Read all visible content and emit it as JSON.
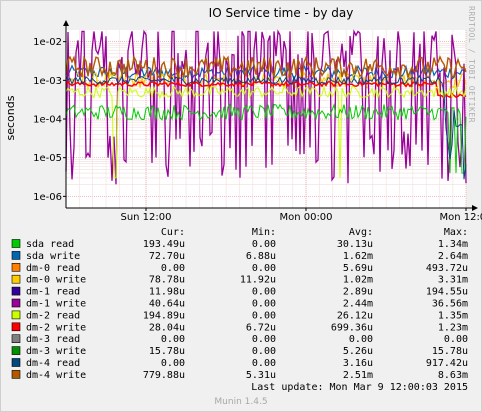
{
  "window": {
    "brand_watermark": "RRDTOOL / TOBI OETIKER",
    "generator": "Munin 1.4.5"
  },
  "chart_data": {
    "type": "line",
    "title": "IO Service time - by day",
    "ylabel": "seconds",
    "yscale": "log",
    "ylim": [
      5e-07,
      0.02
    ],
    "y_ticks": [
      "1e-06",
      "1e-05",
      "1e-04",
      "1e-03",
      "1e-02"
    ],
    "y_tick_values": [
      1e-06,
      1e-05,
      0.0001,
      0.001,
      0.01
    ],
    "x_ticks": [
      "Sun 12:00",
      "Mon 00:00",
      "Mon 12:00"
    ],
    "legend_placement": "bottom",
    "grid": true,
    "last_update": "Last update:  Mon Mar  9 12:00:03 2015",
    "stats_headers": [
      "Cur:",
      "Min:",
      "Avg:",
      "Max:"
    ],
    "series": [
      {
        "name": "sda read",
        "color": "#00cc00",
        "cur": "193.49u",
        "min": "0.00",
        "avg": "30.13u",
        "max": "1.34m"
      },
      {
        "name": "sda write",
        "color": "#0066b3",
        "cur": "72.70u",
        "min": "6.88u",
        "avg": "1.62m",
        "max": "2.64m"
      },
      {
        "name": "dm-0 read",
        "color": "#ff8000",
        "cur": "0.00",
        "min": "0.00",
        "avg": "5.69u",
        "max": "493.72u"
      },
      {
        "name": "dm-0 write",
        "color": "#ffcc00",
        "cur": "78.78u",
        "min": "11.92u",
        "avg": "1.02m",
        "max": "3.31m"
      },
      {
        "name": "dm-1 read",
        "color": "#330099",
        "cur": "11.98u",
        "min": "0.00",
        "avg": "2.89u",
        "max": "194.55u"
      },
      {
        "name": "dm-1 write",
        "color": "#990099",
        "cur": "40.64u",
        "min": "0.00",
        "avg": "2.44m",
        "max": "36.56m"
      },
      {
        "name": "dm-2 read",
        "color": "#ccff00",
        "cur": "194.89u",
        "min": "0.00",
        "avg": "26.12u",
        "max": "1.35m"
      },
      {
        "name": "dm-2 write",
        "color": "#ff0000",
        "cur": "28.04u",
        "min": "6.72u",
        "avg": "699.36u",
        "max": "1.23m"
      },
      {
        "name": "dm-3 read",
        "color": "#808080",
        "cur": "0.00",
        "min": "0.00",
        "avg": "0.00",
        "max": "0.00"
      },
      {
        "name": "dm-3 write",
        "color": "#008f00",
        "cur": "15.78u",
        "min": "0.00",
        "avg": "5.26u",
        "max": "15.78u"
      },
      {
        "name": "dm-4 read",
        "color": "#00487d",
        "cur": "0.00",
        "min": "0.00",
        "avg": "3.16u",
        "max": "917.42u"
      },
      {
        "name": "dm-4 write",
        "color": "#b35a00",
        "cur": "779.88u",
        "min": "5.31u",
        "avg": "2.51m",
        "max": "8.63m"
      }
    ]
  }
}
